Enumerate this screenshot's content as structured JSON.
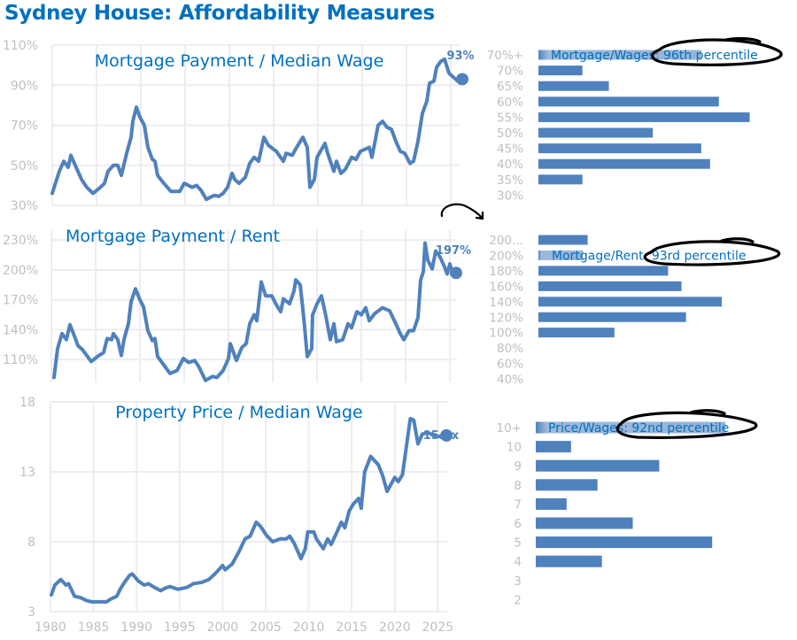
{
  "title": "Sydney House: Affordability Measures",
  "colors": {
    "title": "#0070C0",
    "series": "#4F81BD",
    "grid": "#EDEDED",
    "ticks": "#BFBFBF",
    "annotation": "#000000"
  },
  "chart_data": [
    {
      "id": "mortgage_wage_line",
      "type": "line",
      "title": "Mortgage Payment / Median Wage",
      "end_label": "93%",
      "ylim": [
        30,
        110
      ],
      "yticks": [
        "110%",
        "90%",
        "70%",
        "50%",
        "30%"
      ],
      "ytick_values": [
        110,
        90,
        70,
        50,
        30
      ],
      "xlim": [
        1980,
        2026.5
      ],
      "xtick_values": [
        1980,
        1985,
        1990,
        1995,
        2000,
        2005,
        2010,
        2015,
        2020,
        2025
      ],
      "grid": true,
      "x": [
        1980.0,
        1980.8,
        1981.3,
        1981.8,
        1982.1,
        1982.6,
        1983.3,
        1983.9,
        1984.6,
        1985.3,
        1985.9,
        1986.3,
        1986.9,
        1987.4,
        1987.8,
        1988.4,
        1988.9,
        1989.1,
        1989.5,
        1989.9,
        1990.4,
        1990.8,
        1991.3,
        1991.6,
        1991.9,
        1992.6,
        1993.4,
        1994.4,
        1994.9,
        1995.8,
        1996.3,
        1996.8,
        1997.4,
        1998.3,
        1998.8,
        1999.3,
        1999.8,
        2000.3,
        2000.6,
        2001.1,
        2001.8,
        2002.3,
        2002.8,
        2003.3,
        2003.9,
        2004.4,
        2005.3,
        2006.1,
        2006.4,
        2007.1,
        2007.6,
        2008.3,
        2008.8,
        2009.1,
        2009.6,
        2009.9,
        2010.8,
        2011.1,
        2011.8,
        2012.1,
        2012.6,
        2013.1,
        2013.8,
        2014.3,
        2014.8,
        2015.3,
        2015.8,
        2016.1,
        2016.8,
        2017.3,
        2017.8,
        2018.3,
        2018.8,
        2019.3,
        2019.8,
        2020.4,
        2020.8,
        2021.3,
        2021.8,
        2022.3,
        2022.6,
        2023.1,
        2023.4,
        2023.9,
        2024.3,
        2024.8,
        2025.3,
        2025.8,
        2026.3
      ],
      "values": [
        36,
        47,
        52,
        49,
        55,
        50,
        43,
        39,
        36,
        38.5,
        41,
        47,
        50,
        50,
        45,
        56,
        64,
        72,
        79,
        74,
        70,
        59,
        53,
        52,
        45,
        41,
        37,
        37,
        41,
        39,
        40,
        37.5,
        33,
        35,
        34.5,
        36,
        39,
        46,
        43,
        41,
        44,
        51,
        54,
        52,
        64,
        60,
        57,
        52,
        56,
        55,
        59,
        64,
        59,
        39,
        43,
        54,
        61,
        56,
        47,
        52,
        46,
        48,
        54,
        53,
        57,
        58,
        59,
        54,
        70,
        72,
        69,
        68,
        62,
        57,
        56,
        51,
        52,
        62,
        76,
        82,
        91,
        92,
        99,
        102,
        103,
        96,
        94,
        92,
        93
      ]
    },
    {
      "id": "mortgage_wage_hist",
      "type": "bar",
      "orientation": "horizontal",
      "categories": [
        "70%+",
        "70%",
        "65%",
        "60%",
        "55%",
        "50%",
        "45%",
        "40%",
        "35%",
        "30%"
      ],
      "values": [
        37,
        10,
        16,
        41,
        48,
        26,
        37,
        39,
        10,
        0
      ],
      "highlight_index": 0,
      "annotation": "Mortgage/Wages: 96th percentile"
    },
    {
      "id": "mortgage_rent_line",
      "type": "line",
      "title": "Mortgage Payment / Rent",
      "end_label": "197%",
      "ylim": [
        87,
        240
      ],
      "yticks": [
        "230%",
        "200%",
        "170%",
        "140%",
        "110%"
      ],
      "ytick_values": [
        230,
        200,
        170,
        140,
        110
      ],
      "xlim": [
        1980,
        2026.5
      ],
      "xtick_values": [
        1980,
        1985,
        1990,
        1995,
        2000,
        2005,
        2010,
        2015,
        2020,
        2025
      ],
      "grid": true,
      "x": [
        1980.3,
        1980.7,
        1981.2,
        1981.7,
        1982.1,
        1982.5,
        1983.0,
        1983.5,
        1984.0,
        1984.5,
        1985.2,
        1985.9,
        1986.3,
        1986.8,
        1987.0,
        1987.5,
        1987.9,
        1988.2,
        1988.7,
        1989.0,
        1989.5,
        1990.0,
        1990.4,
        1990.9,
        1991.4,
        1991.7,
        1992.0,
        1992.9,
        1993.4,
        1994.2,
        1994.9,
        1995.5,
        1996.2,
        1996.7,
        1997.4,
        1998.2,
        1998.7,
        1999.4,
        2000.0,
        2000.2,
        2000.9,
        2001.5,
        2002.0,
        2002.4,
        2002.9,
        2003.2,
        2003.7,
        2004.2,
        2004.9,
        2005.4,
        2005.9,
        2006.2,
        2006.9,
        2007.4,
        2007.6,
        2008.1,
        2008.5,
        2008.9,
        2009.4,
        2009.5,
        2010.0,
        2010.5,
        2010.9,
        2011.5,
        2011.9,
        2012.2,
        2012.9,
        2013.5,
        2013.9,
        2014.5,
        2015.0,
        2015.5,
        2015.9,
        2016.5,
        2017.4,
        2018.2,
        2018.9,
        2019.4,
        2019.8,
        2020.4,
        2020.9,
        2021.4,
        2021.7,
        2022.0,
        2022.2,
        2022.5,
        2023.0,
        2023.4,
        2023.9,
        2024.4,
        2024.7,
        2025.0,
        2025.4,
        2025.7
      ],
      "values": [
        92,
        121,
        136,
        130,
        145,
        136,
        124,
        120,
        114,
        108,
        113,
        117,
        131,
        130,
        136,
        130,
        114,
        130,
        146,
        168,
        181,
        170,
        163,
        139,
        129,
        131,
        113,
        102,
        96,
        99,
        111,
        107,
        109,
        102,
        89,
        93,
        92,
        99,
        111,
        126,
        109,
        122,
        126,
        146,
        155,
        149,
        188,
        174,
        174,
        165,
        158,
        171,
        166,
        179,
        190,
        185,
        152,
        113,
        121,
        155,
        166,
        174,
        158,
        130,
        146,
        128,
        130,
        146,
        142,
        158,
        155,
        162,
        149,
        156,
        162,
        159,
        146,
        136,
        130,
        139,
        139,
        152,
        190,
        198,
        227,
        210,
        201,
        219,
        213,
        203,
        196,
        206,
        194,
        197
      ]
    },
    {
      "id": "mortgage_rent_hist",
      "type": "bar",
      "orientation": "horizontal",
      "categories": [
        "200...",
        "200%",
        "180%",
        "160%",
        "140%",
        "120%",
        "100%",
        "80%",
        "60%",
        "40%"
      ],
      "values": [
        11,
        10,
        29,
        32,
        41,
        33,
        17,
        0,
        0,
        0
      ],
      "highlight_index": 1,
      "annotation": "Mortgage/Rent: 93rd percentile"
    },
    {
      "id": "price_wage_line",
      "type": "line",
      "title": "Property Price / Median Wage",
      "end_label": "15.6x",
      "ylim": [
        3,
        18
      ],
      "yticks": [
        "18",
        "13",
        "8",
        "3"
      ],
      "ytick_values": [
        18,
        13,
        8,
        3
      ],
      "xlim": [
        1980,
        2026.5
      ],
      "xticks": [
        "1980",
        "1985",
        "1990",
        "1995",
        "2000",
        "2005",
        "2010",
        "2015",
        "2020",
        "2025"
      ],
      "xtick_values": [
        1980,
        1985,
        1990,
        1995,
        2000,
        2005,
        2010,
        2015,
        2020,
        2025
      ],
      "grid": true,
      "x": [
        1980.1,
        1980.5,
        1981.2,
        1981.8,
        1982.1,
        1982.8,
        1983.5,
        1984.2,
        1984.8,
        1985.8,
        1986.5,
        1987.0,
        1987.7,
        1988.1,
        1988.6,
        1989.2,
        1989.5,
        1990.2,
        1990.9,
        1991.4,
        1991.9,
        1992.8,
        1993.4,
        1993.9,
        1994.8,
        1995.9,
        1996.6,
        1997.6,
        1998.4,
        1999.1,
        2000.0,
        2000.3,
        2001.1,
        2001.9,
        2002.6,
        2003.2,
        2003.9,
        2004.4,
        2005.1,
        2005.8,
        2006.7,
        2007.4,
        2007.8,
        2008.3,
        2009.1,
        2009.6,
        2009.9,
        2010.6,
        2010.9,
        2011.7,
        2012.2,
        2012.6,
        2013.1,
        2013.8,
        2014.2,
        2014.7,
        2015.2,
        2015.8,
        2016.1,
        2016.5,
        2017.2,
        2018.1,
        2018.6,
        2019.1,
        2020.0,
        2020.4,
        2020.9,
        2021.8,
        2022.2,
        2022.7,
        2023.2,
        2023.9,
        2024.8,
        2026.0
      ],
      "values": [
        4.2,
        4.9,
        5.3,
        4.9,
        5.0,
        4.1,
        4.0,
        3.8,
        3.7,
        3.7,
        3.7,
        3.9,
        4.1,
        4.6,
        5.1,
        5.6,
        5.7,
        5.2,
        4.9,
        5.0,
        4.8,
        4.5,
        4.7,
        4.8,
        4.6,
        4.75,
        5.0,
        5.1,
        5.3,
        5.7,
        6.3,
        6.0,
        6.4,
        7.3,
        8.2,
        8.4,
        9.4,
        9.1,
        8.45,
        8.0,
        8.2,
        8.2,
        8.4,
        7.9,
        6.8,
        7.5,
        8.7,
        8.7,
        8.2,
        7.5,
        8.2,
        7.8,
        8.45,
        9.4,
        9.0,
        10.2,
        10.7,
        11.1,
        10.4,
        13.0,
        14.1,
        13.5,
        12.7,
        11.6,
        12.6,
        12.3,
        12.8,
        16.8,
        16.7,
        15.0,
        15.7,
        15.8,
        15.5,
        15.6
      ]
    },
    {
      "id": "price_wage_hist",
      "type": "bar",
      "orientation": "horizontal",
      "categories": [
        "10+",
        "10",
        "9",
        "8",
        "7",
        "6",
        "5",
        "4",
        "3",
        "2"
      ],
      "values": [
        43,
        8,
        28,
        14,
        7,
        22,
        40,
        15,
        0,
        0
      ],
      "highlight_index": 0,
      "annotation": "Price/Wages: 92nd percentile"
    }
  ]
}
